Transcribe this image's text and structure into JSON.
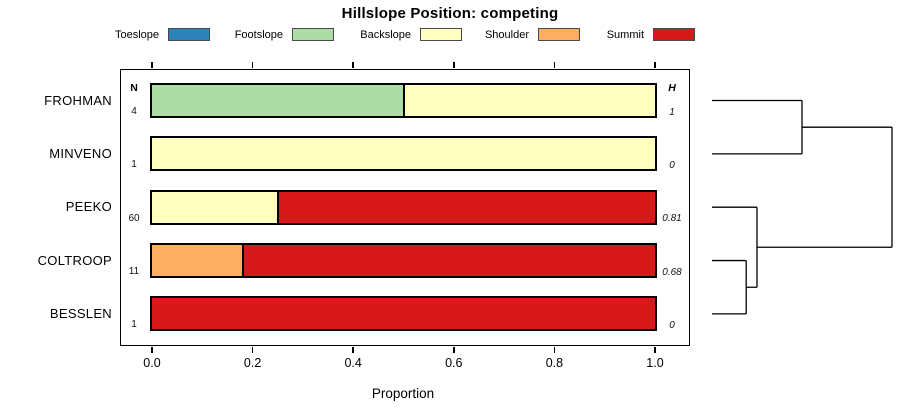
{
  "title": "Hillslope Position: competing",
  "column_headers": {
    "n": "N",
    "h": "H"
  },
  "legend": [
    {
      "label": "Toeslope",
      "color": "#2B83BA"
    },
    {
      "label": "Footslope",
      "color": "#ABDDA4"
    },
    {
      "label": "Backslope",
      "color": "#FFFFBF"
    },
    {
      "label": "Shoulder",
      "color": "#FDAE61"
    },
    {
      "label": "Summit",
      "color": "#D7191C"
    }
  ],
  "rows": [
    {
      "label": "FROHMAN",
      "n": "4",
      "h": "1",
      "segments": [
        {
          "category": "Footslope",
          "color": "#ABDDA4",
          "from": 0,
          "to": 0.5
        },
        {
          "category": "Backslope",
          "color": "#FFFFBF",
          "from": 0.5,
          "to": 1
        }
      ]
    },
    {
      "label": "MINVENO",
      "n": "1",
      "h": "0",
      "segments": [
        {
          "category": "Backslope",
          "color": "#FFFFBF",
          "from": 0,
          "to": 1
        }
      ]
    },
    {
      "label": "PEEKO",
      "n": "60",
      "h": "0.81",
      "segments": [
        {
          "category": "Backslope",
          "color": "#FFFFBF",
          "from": 0,
          "to": 0.25
        },
        {
          "category": "Summit",
          "color": "#D7191C",
          "from": 0.25,
          "to": 1
        }
      ]
    },
    {
      "label": "COLTROOP",
      "n": "11",
      "h": "0.68",
      "segments": [
        {
          "category": "Shoulder",
          "color": "#FDAE61",
          "from": 0,
          "to": 0.18
        },
        {
          "category": "Summit",
          "color": "#D7191C",
          "from": 0.18,
          "to": 1
        }
      ]
    },
    {
      "label": "BESSLEN",
      "n": "1",
      "h": "0",
      "segments": [
        {
          "category": "Summit",
          "color": "#D7191C",
          "from": 0,
          "to": 1
        }
      ]
    }
  ],
  "x_axis": {
    "label": "Proportion",
    "ticks": [
      {
        "value": 0,
        "label": "0.0"
      },
      {
        "value": 0.2,
        "label": "0.2"
      },
      {
        "value": 0.4,
        "label": "0.4"
      },
      {
        "value": 0.6,
        "label": "0.6"
      },
      {
        "value": 0.8,
        "label": "0.8"
      },
      {
        "value": 1,
        "label": "1.0"
      }
    ]
  },
  "dendrogram": {
    "leaves": [
      "FROHMAN",
      "MINVENO",
      "PEEKO",
      "COLTROOP",
      "BESSLEN"
    ],
    "merges": [
      {
        "children": [
          {
            "leaf": 3
          },
          {
            "leaf": 4
          }
        ],
        "height": 0.19
      },
      {
        "children": [
          {
            "leaf": 2
          },
          {
            "node": 0
          }
        ],
        "height": 0.25
      },
      {
        "children": [
          {
            "leaf": 0
          },
          {
            "leaf": 1
          }
        ],
        "height": 0.5
      },
      {
        "children": [
          {
            "node": 2
          },
          {
            "node": 1
          }
        ],
        "height": 1.0
      }
    ]
  },
  "chart_data": {
    "type": "bar",
    "orientation": "horizontal",
    "stacked": true,
    "title": "Hillslope Position: competing",
    "xlabel": "Proportion",
    "ylabel": "",
    "xlim": [
      0,
      1
    ],
    "xticks": [
      0,
      0.2,
      0.4,
      0.6,
      0.8,
      1.0
    ],
    "grid": false,
    "legend_position": "top",
    "legend_entries": [
      "Toeslope",
      "Footslope",
      "Backslope",
      "Shoulder",
      "Summit"
    ],
    "legend_colors": [
      "#2B83BA",
      "#ABDDA4",
      "#FFFFBF",
      "#FDAE61",
      "#D7191C"
    ],
    "categories": [
      "FROHMAN",
      "MINVENO",
      "PEEKO",
      "COLTROOP",
      "BESSLEN"
    ],
    "n_values": [
      4,
      1,
      60,
      11,
      1
    ],
    "shannon_h_values": [
      1,
      0,
      0.81,
      0.68,
      0
    ],
    "series": [
      {
        "name": "Toeslope",
        "values": [
          0,
          0,
          0,
          0,
          0
        ]
      },
      {
        "name": "Footslope",
        "values": [
          0.5,
          0,
          0,
          0,
          0
        ]
      },
      {
        "name": "Backslope",
        "values": [
          0.5,
          1,
          0.25,
          0,
          0
        ]
      },
      {
        "name": "Shoulder",
        "values": [
          0,
          0,
          0,
          0.18,
          0
        ]
      },
      {
        "name": "Summit",
        "values": [
          0,
          0,
          0.75,
          0.82,
          1
        ]
      }
    ],
    "right_annotation": "dendrogram of hillslope-position similarity with merge heights 0.19 (COLTROOP+BESSLEN), 0.25 (+PEEKO), 0.50 (FROHMAN+MINVENO), 1.00 (root)"
  }
}
